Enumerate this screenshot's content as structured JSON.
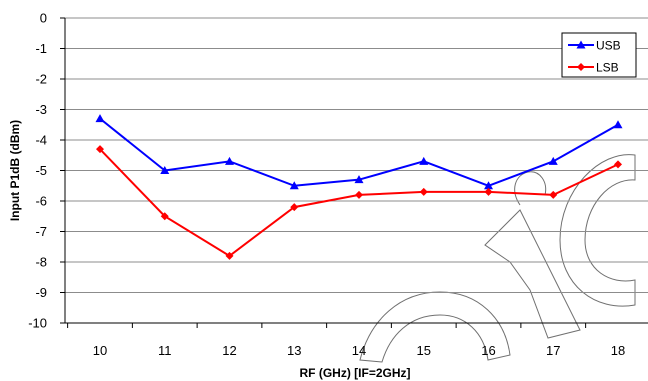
{
  "chart_data": {
    "type": "line",
    "title": "",
    "xlabel": "RF (GHz) [IF=2GHz]",
    "ylabel": "Input P1dB (dBm)",
    "categories": [
      "10",
      "11",
      "12",
      "13",
      "14",
      "15",
      "16",
      "17",
      "18"
    ],
    "x": [
      10,
      11,
      12,
      13,
      14,
      15,
      16,
      17,
      18
    ],
    "ylim": [
      -10,
      0
    ],
    "yticks": [
      "0",
      "-1",
      "-2",
      "-3",
      "-4",
      "-5",
      "-6",
      "-7",
      "-8",
      "-9",
      "-10"
    ],
    "grid": true,
    "legend_position": "top-right",
    "series": [
      {
        "name": "USB",
        "color": "#0000ff",
        "marker": "triangle",
        "values": [
          -3.3,
          -5.0,
          -4.7,
          -5.5,
          -5.3,
          -4.7,
          -5.5,
          -4.7,
          -3.5
        ]
      },
      {
        "name": "LSB",
        "color": "#ff0000",
        "marker": "diamond",
        "values": [
          -4.3,
          -6.5,
          -7.8,
          -6.2,
          -5.8,
          -5.7,
          -5.7,
          -5.8,
          -4.8
        ]
      }
    ]
  }
}
